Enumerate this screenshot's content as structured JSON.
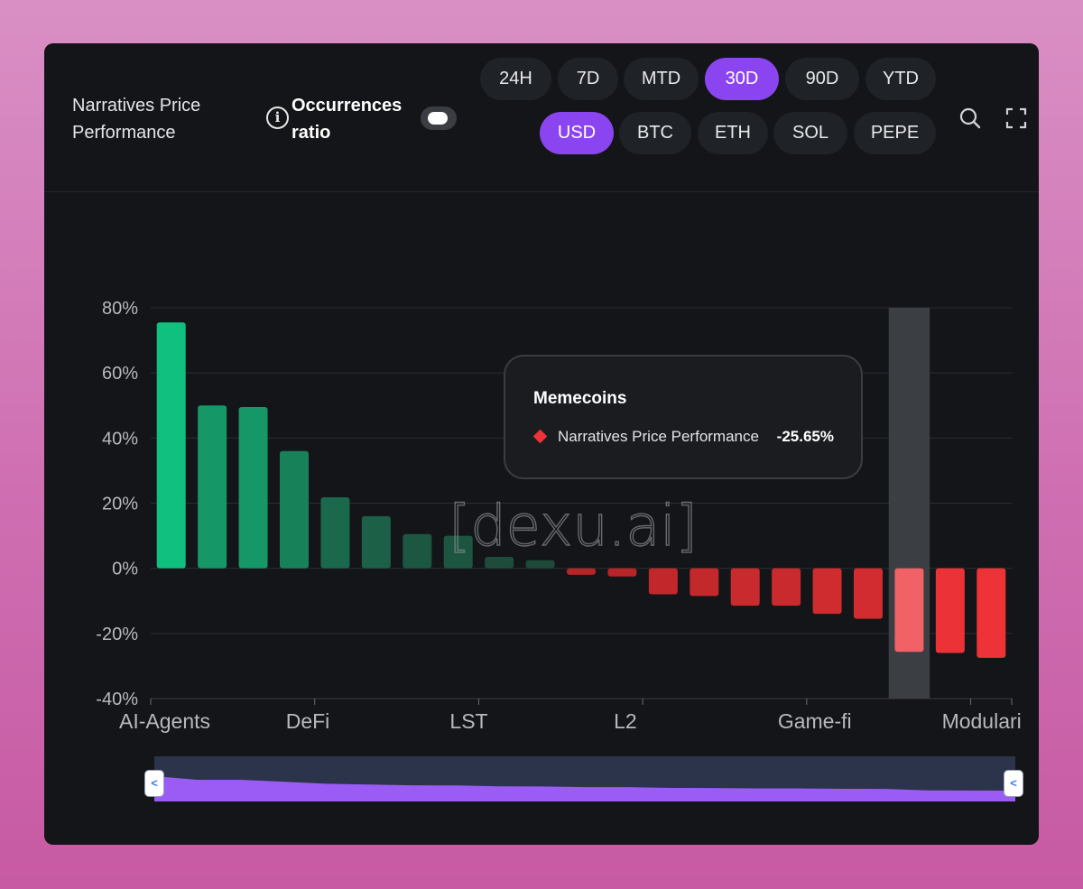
{
  "header": {
    "title": "Narratives Price Performance",
    "occurrences_label": "Occurrences ratio",
    "occurrences_enabled": false
  },
  "timeframes": {
    "options": [
      "24H",
      "7D",
      "MTD",
      "30D",
      "90D",
      "YTD"
    ],
    "selected": "30D"
  },
  "currencies": {
    "options": [
      "USD",
      "BTC",
      "ETH",
      "SOL",
      "PEPE"
    ],
    "selected": "USD"
  },
  "toolbar": {
    "search_icon": "search-icon",
    "fullscreen_icon": "fullscreen-icon"
  },
  "watermark": "[dexu.ai]",
  "colors": {
    "accent": "#8b45f0",
    "positive": "#10c07f",
    "negative": "#ee3338",
    "background": "#131518"
  },
  "tooltip": {
    "title": "Memecoins",
    "series": "Narratives Price Performance",
    "value": "-25.65%"
  },
  "chart_data": {
    "type": "bar",
    "title": "Narratives Price Performance",
    "ylim": [
      -40,
      80
    ],
    "yticks": [
      80,
      60,
      40,
      20,
      0,
      -20,
      -40
    ],
    "ytick_labels": [
      "80%",
      "60%",
      "40%",
      "20%",
      "0%",
      "-20%",
      "-40%"
    ],
    "x_tick_labels": [
      "AI-Agents",
      "DeFi",
      "LST",
      "L2",
      "Game-fi",
      "Modulari"
    ],
    "x_tick_label_index": [
      0,
      4,
      8,
      12,
      16,
      20
    ],
    "highlighted_index": 18,
    "series": [
      {
        "name": "Narratives Price Performance",
        "unit": "%",
        "values": [
          75.5,
          50.0,
          49.5,
          36.0,
          21.8,
          16.0,
          10.5,
          10.0,
          3.5,
          2.5,
          -2.0,
          -2.5,
          -8.0,
          -8.5,
          -11.5,
          -11.5,
          -14.0,
          -15.5,
          -25.65,
          -26.0,
          -27.5
        ]
      }
    ]
  }
}
